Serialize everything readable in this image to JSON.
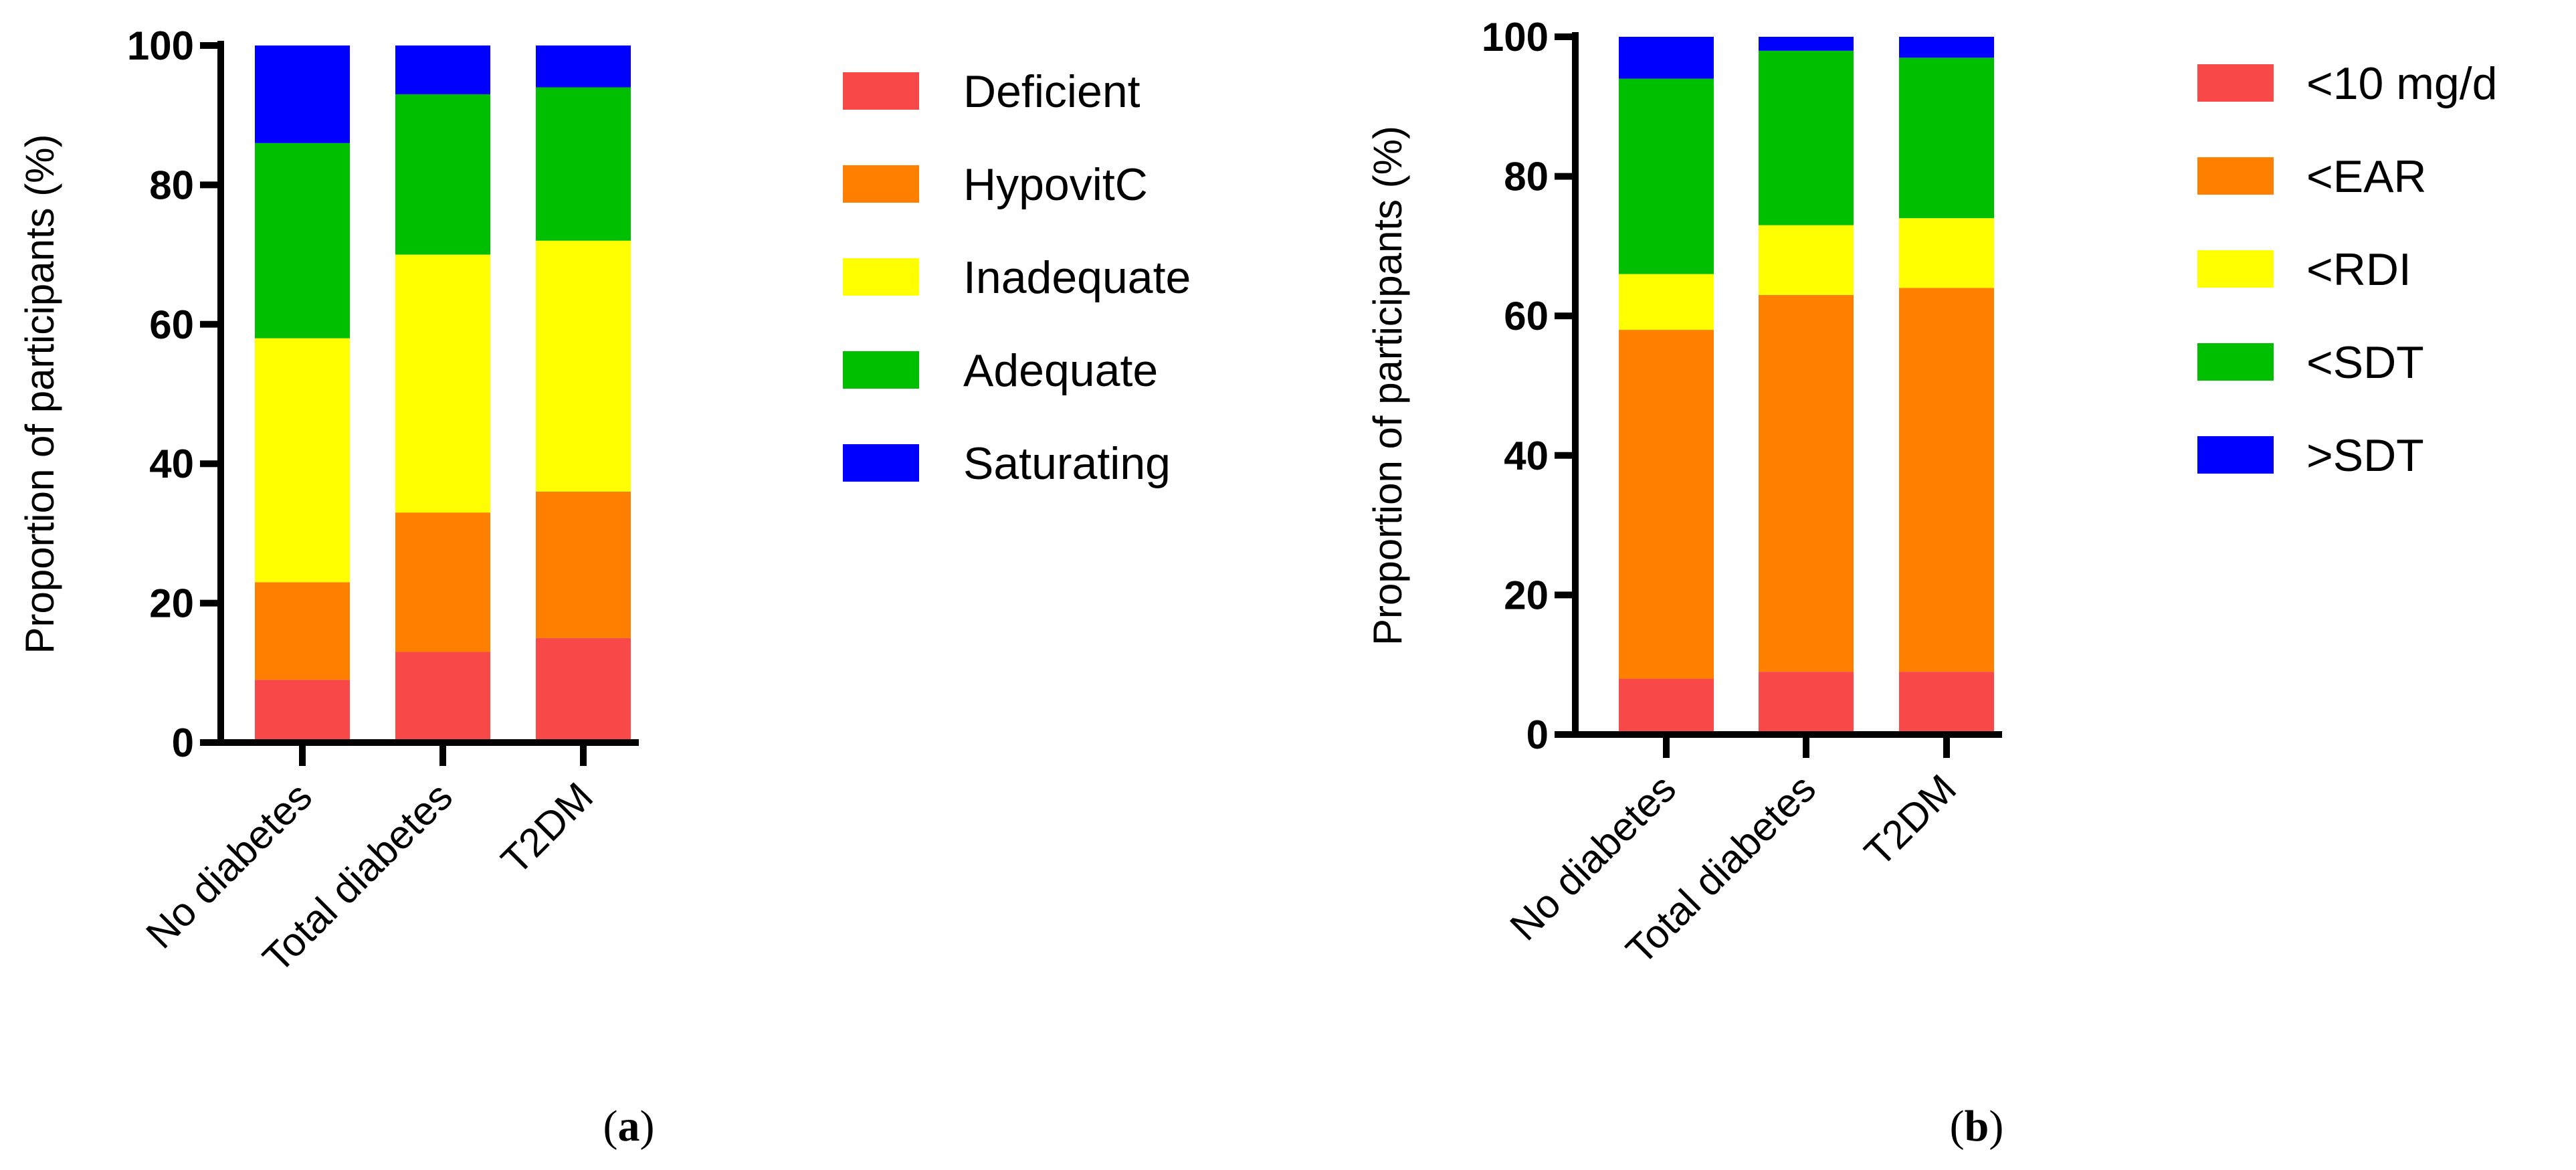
{
  "chart_data": [
    {
      "type": "bar",
      "stacked": true,
      "panel_label": "a",
      "categories": [
        "No diabetes",
        "Total diabetes",
        "T2DM"
      ],
      "ylabel": "Proportion of participants (%)",
      "xlabel": "",
      "ylim": [
        0,
        100
      ],
      "yticks": [
        0,
        20,
        40,
        60,
        80,
        100
      ],
      "legend_position": "right",
      "series": [
        {
          "name": "Deficient",
          "color": "#F94848",
          "values": [
            9,
            13,
            15
          ]
        },
        {
          "name": "HypovitC",
          "color": "#FF8000",
          "values": [
            14,
            20,
            21
          ]
        },
        {
          "name": "Inadequate",
          "color": "#FFFF00",
          "values": [
            35,
            37,
            36
          ]
        },
        {
          "name": "Adequate",
          "color": "#00BF00",
          "values": [
            28,
            23,
            22
          ]
        },
        {
          "name": "Saturating",
          "color": "#0000FF",
          "values": [
            14,
            7,
            6
          ]
        }
      ]
    },
    {
      "type": "bar",
      "stacked": true,
      "panel_label": "b",
      "categories": [
        "No diabetes",
        "Total diabetes",
        "T2DM"
      ],
      "ylabel": "Proportion of participants (%)",
      "xlabel": "",
      "ylim": [
        0,
        100
      ],
      "yticks": [
        0,
        20,
        40,
        60,
        80,
        100
      ],
      "legend_position": "right",
      "series": [
        {
          "name": "<10 mg/d",
          "color": "#F94848",
          "values": [
            8,
            9,
            9
          ]
        },
        {
          "name": "<EAR",
          "color": "#FF8000",
          "values": [
            50,
            54,
            55
          ]
        },
        {
          "name": "<RDI",
          "color": "#FFFF00",
          "values": [
            8,
            10,
            10
          ]
        },
        {
          "name": "<SDT",
          "color": "#00BF00",
          "values": [
            28,
            25,
            23
          ]
        },
        {
          "name": ">SDT",
          "color": "#0000FF",
          "values": [
            6,
            2,
            3
          ]
        }
      ]
    }
  ]
}
